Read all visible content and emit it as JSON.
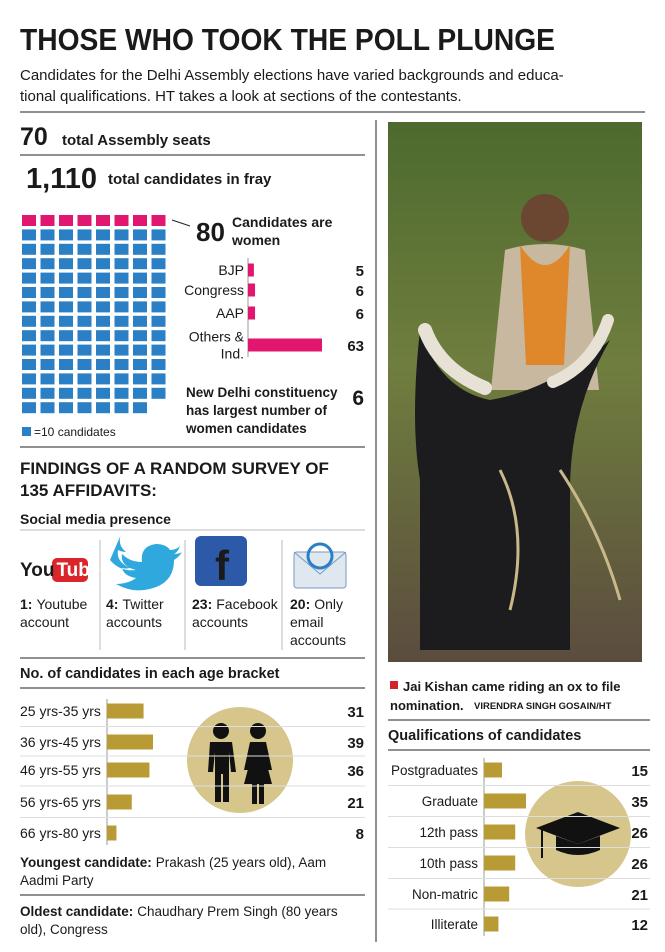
{
  "title": "THOSE WHO TOOK THE POLL PLUNGE",
  "intro": [
    "Candidates for the Delhi Assembly elections have varied backgrounds and educa-",
    "tional qualifications. HT takes a look at sections of the contestants."
  ],
  "seats": {
    "value": 70,
    "label": "total Assembly seats"
  },
  "chart_data": [
    {
      "type": "waffle",
      "total": 1110,
      "total_label": "1,110",
      "total_caption": "total candidates in fray",
      "women": 80,
      "women_caption": [
        "Candidates are",
        "women"
      ],
      "unit": 10,
      "unit_label": "=10 candidates",
      "color": "#2a7fc5",
      "highlight_color": "#e0166f"
    },
    {
      "type": "hbar",
      "categories": [
        [
          "BJP"
        ],
        [
          "Congress"
        ],
        [
          "AAP"
        ],
        [
          "Others &",
          "Ind."
        ]
      ],
      "values": [
        5,
        6,
        6,
        63
      ],
      "color": "#e0166f"
    },
    {
      "type": "hbar",
      "title": "No. of candidates in each age bracket",
      "categories": [
        [
          "25 yrs-35 yrs"
        ],
        [
          "36 yrs-45 yrs"
        ],
        [
          "46 yrs-55 yrs"
        ],
        [
          "56 yrs-65 yrs"
        ],
        [
          "66 yrs-80 yrs"
        ]
      ],
      "values": [
        31,
        39,
        36,
        21,
        8
      ],
      "color": "#b89b35"
    },
    {
      "type": "hbar",
      "title": "Qualifications of candidates",
      "categories": [
        [
          "Postgraduates"
        ],
        [
          "Graduate"
        ],
        [
          "12th pass"
        ],
        [
          "10th pass"
        ],
        [
          "Non-matric"
        ],
        [
          "Illiterate"
        ]
      ],
      "values": [
        15,
        35,
        26,
        26,
        21,
        12
      ],
      "color": "#b89b35"
    }
  ],
  "women_note": {
    "lines": [
      "New Delhi constituency",
      "has largest number of",
      "women candidates"
    ],
    "value": 6
  },
  "survey": {
    "heading": [
      "FINDINGS OF A RANDOM SURVEY OF",
      "135 AFFIDAVITS:"
    ],
    "subheading": "Social media presence",
    "items": [
      {
        "count": "1:",
        "lines": [
          "Youtube",
          "account"
        ]
      },
      {
        "count": "4:",
        "lines": [
          "Twitter",
          "accounts"
        ]
      },
      {
        "count": "23:",
        "lines": [
          "Facebook",
          "accounts"
        ]
      },
      {
        "count": "20:",
        "lines": [
          "Only",
          "email",
          "accounts"
        ]
      }
    ]
  },
  "logos": {
    "youtube": [
      "You",
      "Tube"
    ],
    "facebook": "f"
  },
  "youngest": {
    "label": "Youngest candidate:",
    "lines": [
      "Prakash (25 years old), Aam",
      "Aadmi Party"
    ]
  },
  "oldest": {
    "label": "Oldest candidate:",
    "lines": [
      "Chaudhary Prem Singh (80 years",
      "old), Congress"
    ]
  },
  "photo": {
    "caption": [
      "Jai Kishan came riding an ox to file",
      "nomination."
    ],
    "credit": "VIRENDRA SINGH GOSAIN/HT"
  }
}
